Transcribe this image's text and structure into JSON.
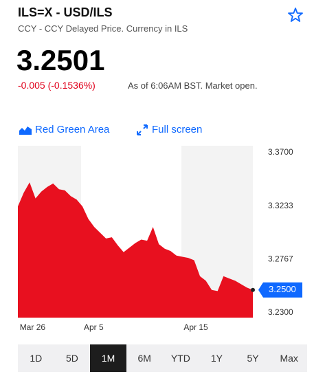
{
  "header": {
    "title": "ILS=X - USD/ILS",
    "subtitle": "CCY - CCY Delayed Price. Currency in ILS",
    "price": "3.2501",
    "change": "-0.005 (-0.1536%)",
    "as_of": "As of 6:06AM BST. Market open."
  },
  "toolbar": {
    "chart_style": "Red Green Area",
    "full_screen": "Full screen"
  },
  "chart_data": {
    "type": "area",
    "color": "#e8101f",
    "values": [
      3.323,
      3.335,
      3.344,
      3.33,
      3.336,
      3.34,
      3.343,
      3.338,
      3.337,
      3.332,
      3.329,
      3.323,
      3.312,
      3.305,
      3.3,
      3.295,
      3.296,
      3.289,
      3.283,
      3.287,
      3.291,
      3.294,
      3.293,
      3.305,
      3.29,
      3.286,
      3.284,
      3.28,
      3.279,
      3.278,
      3.276,
      3.262,
      3.258,
      3.25,
      3.249,
      3.262,
      3.26,
      3.258,
      3.255,
      3.252,
      3.25
    ],
    "ylim": [
      3.23,
      3.37
    ],
    "yticks": [
      {
        "value": 3.37,
        "label": "3.3700"
      },
      {
        "value": 3.3233,
        "label": "3.3233"
      },
      {
        "value": 3.2767,
        "label": "3.2767"
      },
      {
        "value": 3.23,
        "label": "3.2300"
      }
    ],
    "xticks": [
      {
        "value": 2.5,
        "label": "Mar 26"
      },
      {
        "value": 12.9,
        "label": "Apr 5"
      },
      {
        "value": 30.3,
        "label": "Apr 15"
      }
    ],
    "last_label": "3.2500"
  },
  "ranges": {
    "options": [
      "1D",
      "5D",
      "1M",
      "6M",
      "YTD",
      "1Y",
      "5Y",
      "Max"
    ],
    "selected": 2
  }
}
